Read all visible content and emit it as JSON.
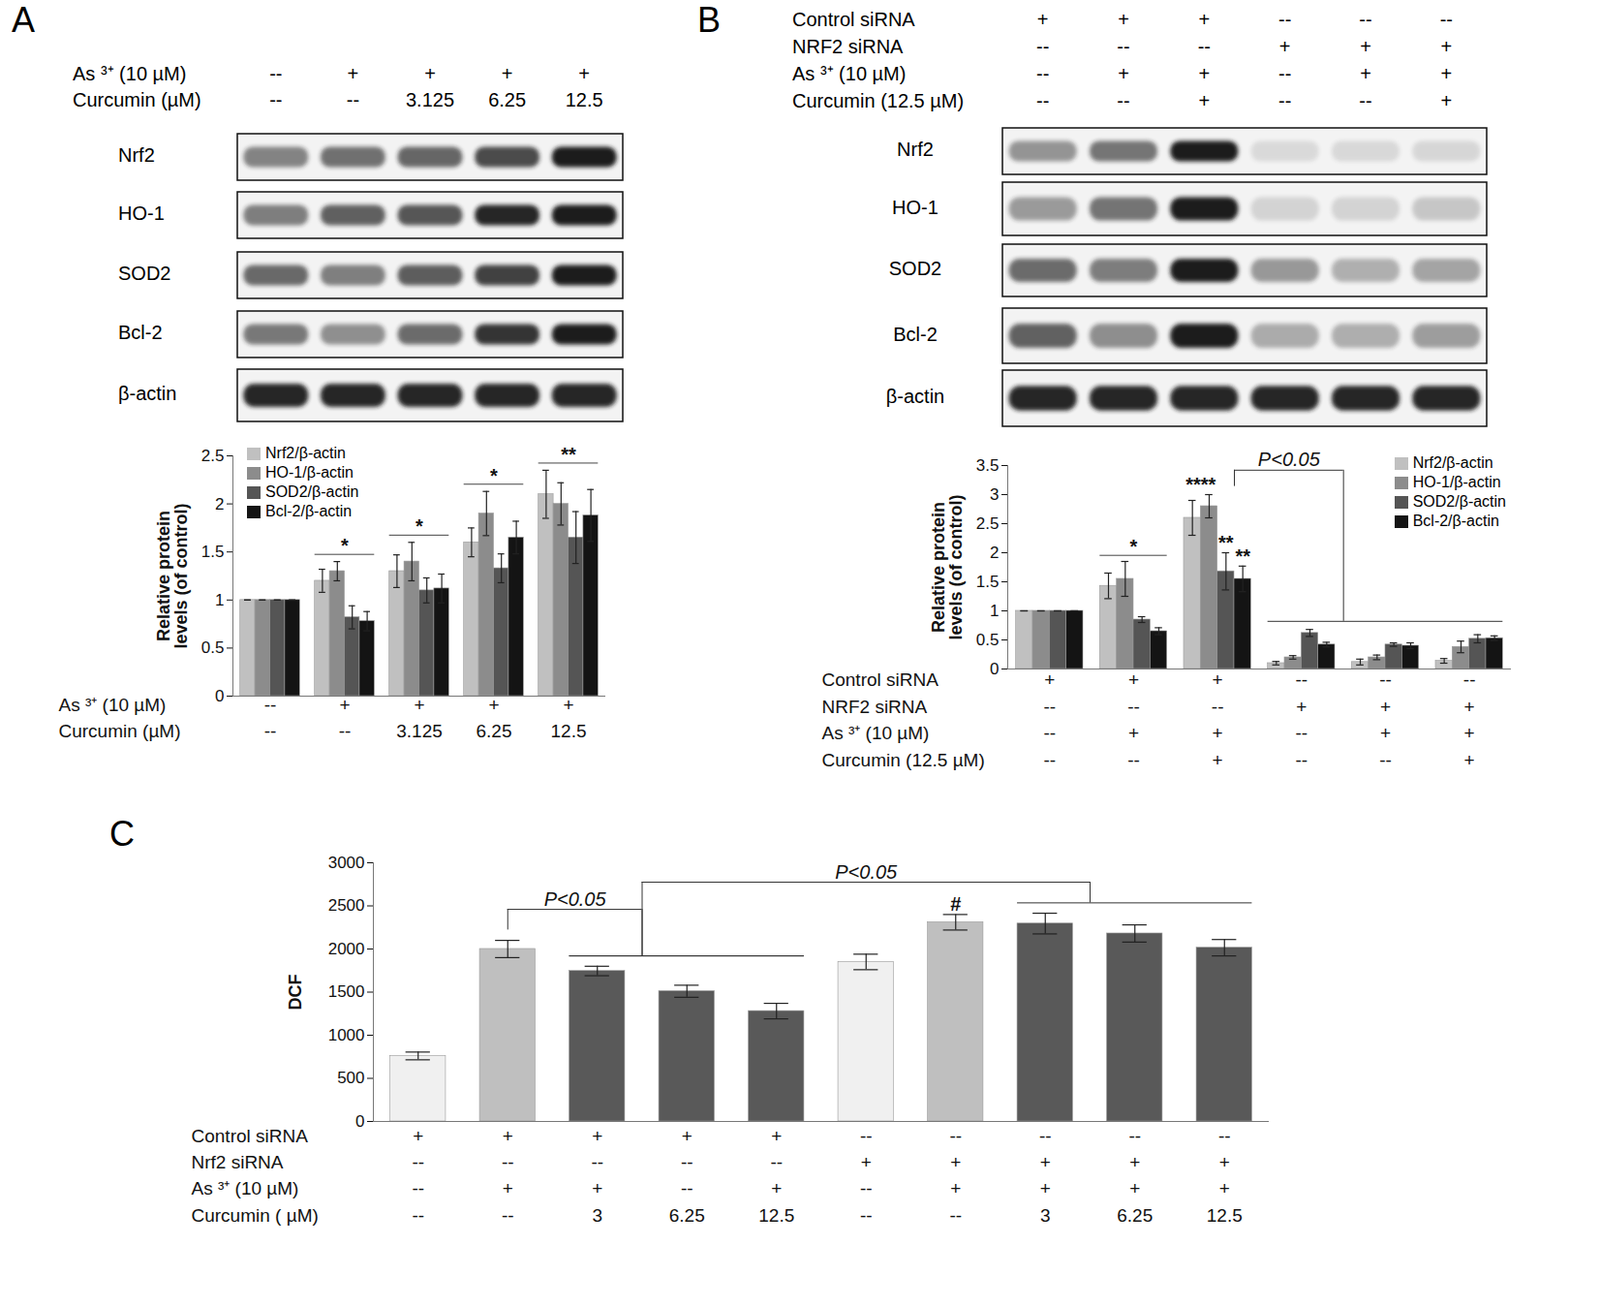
{
  "chart_data": [
    {
      "panel": "A",
      "type": "bar",
      "categories": [
        null,
        null,
        null,
        null,
        null
      ],
      "series": [
        {
          "name": "Nrf2/β-actin",
          "color": "#c0c0c0",
          "values": [
            1,
            1.2,
            1.3,
            1.6,
            2.1
          ],
          "errors": [
            0,
            0.12,
            0.17,
            0.15,
            0.25
          ]
        },
        {
          "name": "HO-1/β-actin",
          "color": "#8c8c8c",
          "values": [
            1,
            1.3,
            1.4,
            1.9,
            2.0
          ],
          "errors": [
            0,
            0.1,
            0.2,
            0.23,
            0.22
          ]
        },
        {
          "name": "SOD2/β-actin",
          "color": "#555555",
          "values": [
            1,
            0.82,
            1.1,
            1.33,
            1.65
          ],
          "errors": [
            0,
            0.12,
            0.13,
            0.15,
            0.27
          ]
        },
        {
          "name": "Bcl-2/β-actin",
          "color": "#141414",
          "values": [
            1,
            0.78,
            1.12,
            1.65,
            1.88
          ],
          "errors": [
            0,
            0.1,
            0.15,
            0.17,
            0.27
          ]
        }
      ],
      "ylim": [
        0,
        2.5
      ],
      "yticks": [
        0,
        0.5,
        1,
        1.5,
        2,
        2.5
      ],
      "y_label": "Relative protein levels (of control)",
      "legend": "top-left",
      "conditions": [
        {
          "label": "As ³⁺ (10 µM)",
          "values": [
            "--",
            "+",
            "+",
            "+",
            "+"
          ]
        },
        {
          "label": "Curcumin (µM)",
          "values": [
            "--",
            "--",
            "3.125",
            "6.25",
            "12.5"
          ]
        }
      ],
      "annotations": [
        {
          "text": "*",
          "category": 1
        },
        {
          "text": "*",
          "category": 2
        },
        {
          "text": "*",
          "category": 3
        },
        {
          "text": "**",
          "category": 4
        }
      ],
      "blot": {
        "header": [
          {
            "label": "As ³⁺ (10 µM)",
            "values": [
              "--",
              "+",
              "+",
              "+",
              "+"
            ]
          },
          {
            "label": "Curcumin (µM)",
            "values": [
              "--",
              "--",
              "3.125",
              "6.25",
              "12.5"
            ]
          }
        ],
        "rows": [
          "Nrf2",
          "HO-1",
          "SOD2",
          "Bcl-2",
          "β-actin"
        ]
      }
    },
    {
      "panel": "B",
      "type": "bar",
      "categories": [
        null,
        null,
        null,
        null,
        null,
        null
      ],
      "series": [
        {
          "name": "Nrf2/β-actin",
          "color": "#c0c0c0",
          "values": [
            1,
            1.43,
            2.6,
            0.1,
            0.12,
            0.14
          ],
          "errors": [
            0,
            0.22,
            0.3,
            0.03,
            0.05,
            0.04
          ]
        },
        {
          "name": "HO-1/β-actin",
          "color": "#8c8c8c",
          "values": [
            1,
            1.55,
            2.8,
            0.2,
            0.2,
            0.38
          ],
          "errors": [
            0,
            0.3,
            0.2,
            0.03,
            0.04,
            0.1
          ]
        },
        {
          "name": "SOD2/β-actin",
          "color": "#555555",
          "values": [
            1,
            0.85,
            1.68,
            0.62,
            0.42,
            0.52
          ],
          "errors": [
            0,
            0.05,
            0.32,
            0.06,
            0.03,
            0.07
          ]
        },
        {
          "name": "Bcl-2/β-actin",
          "color": "#141414",
          "values": [
            1,
            0.65,
            1.55,
            0.42,
            0.4,
            0.53
          ],
          "errors": [
            0,
            0.06,
            0.22,
            0.04,
            0.05,
            0.04
          ]
        }
      ],
      "ylim": [
        0,
        3.5
      ],
      "yticks": [
        0,
        0.5,
        1,
        1.5,
        2,
        2.5,
        3,
        3.5
      ],
      "y_label": "Relative protein levels (of control)",
      "legend": "top-right",
      "conditions": [
        {
          "label": "Control siRNA",
          "values": [
            "+",
            "+",
            "+",
            "--",
            "--",
            "--"
          ]
        },
        {
          "label": "NRF2 siRNA",
          "values": [
            "--",
            "--",
            "--",
            "+",
            "+",
            "+"
          ]
        },
        {
          "label": "As ³⁺ (10 µM)",
          "values": [
            "--",
            "+",
            "+",
            "--",
            "+",
            "+"
          ]
        },
        {
          "label": "Curcumin (12.5 µM)",
          "values": [
            "--",
            "--",
            "+",
            "--",
            "--",
            "+"
          ]
        }
      ],
      "annotations": [
        {
          "text": "*",
          "category": 1
        },
        {
          "text": "****",
          "category": 2,
          "series": [
            "Nrf2/β-actin",
            "HO-1/β-actin"
          ]
        },
        {
          "text": "**",
          "category": 2,
          "series": [
            "SOD2/β-actin"
          ]
        },
        {
          "text": "**",
          "category": 2,
          "series": [
            "Bcl-2/β-actin"
          ]
        }
      ],
      "comparisons": [
        {
          "text": "P<0.05",
          "from": [
            2
          ],
          "to": [
            3,
            4,
            5
          ]
        }
      ],
      "blot": {
        "header": [
          {
            "label": "Control siRNA",
            "values": [
              "+",
              "+",
              "+",
              "--",
              "--",
              "--"
            ]
          },
          {
            "label": "NRF2 siRNA",
            "values": [
              "--",
              "--",
              "--",
              "+",
              "+",
              "+"
            ]
          },
          {
            "label": "As ³⁺ (10 µM)",
            "values": [
              "--",
              "+",
              "+",
              "--",
              "+",
              "+"
            ]
          },
          {
            "label": "Curcumin (12.5 µM)",
            "values": [
              "--",
              "--",
              "+",
              "--",
              "--",
              "+"
            ]
          }
        ],
        "rows": [
          "Nrf2",
          "HO-1",
          "SOD2",
          "Bcl-2",
          "β-actin"
        ]
      }
    },
    {
      "panel": "C",
      "type": "bar",
      "categories": [
        null,
        null,
        null,
        null,
        null,
        null,
        null,
        null,
        null,
        null
      ],
      "colors": [
        "#f0f0f0",
        "#bfbfbf",
        "#595959",
        "#595959",
        "#595959",
        "#f0f0f0",
        "#bfbfbf",
        "#595959",
        "#595959",
        "#595959"
      ],
      "series": [
        {
          "values": [
            760,
            2000,
            1745,
            1510,
            1280,
            1850,
            2310,
            2295,
            2180,
            2015
          ],
          "errors": [
            45,
            100,
            55,
            70,
            90,
            90,
            90,
            120,
            100,
            95
          ]
        }
      ],
      "ylim": [
        0,
        3000
      ],
      "yticks": [
        0,
        500,
        1000,
        1500,
        2000,
        2500,
        3000
      ],
      "y_label": "DCF",
      "conditions": [
        {
          "label": "Control siRNA",
          "values": [
            "+",
            "+",
            "+",
            "+",
            "+",
            "--",
            "--",
            "--",
            "--",
            "--"
          ]
        },
        {
          "label": "Nrf2 siRNA",
          "values": [
            "--",
            "--",
            "--",
            "--",
            "--",
            "+",
            "+",
            "+",
            "+",
            "+"
          ]
        },
        {
          "label": "As ³⁺ (10 µM)",
          "values": [
            "--",
            "+",
            "+",
            "--",
            "+",
            "--",
            "+",
            "+",
            "+",
            "+"
          ]
        },
        {
          "label": "Curcumin ( µM)",
          "values": [
            "--",
            "--",
            "3",
            "6.25",
            "12.5",
            "--",
            "--",
            "3",
            "6.25",
            "12.5"
          ]
        }
      ],
      "annotations": [
        {
          "text": "#",
          "category": 6
        }
      ],
      "comparisons": [
        {
          "text": "P<0.05",
          "from": [
            1
          ],
          "to": [
            2,
            3,
            4
          ]
        },
        {
          "text": "P<0.05",
          "from": [
            2,
            3,
            4
          ],
          "to": [
            7,
            8,
            9
          ]
        }
      ]
    }
  ]
}
